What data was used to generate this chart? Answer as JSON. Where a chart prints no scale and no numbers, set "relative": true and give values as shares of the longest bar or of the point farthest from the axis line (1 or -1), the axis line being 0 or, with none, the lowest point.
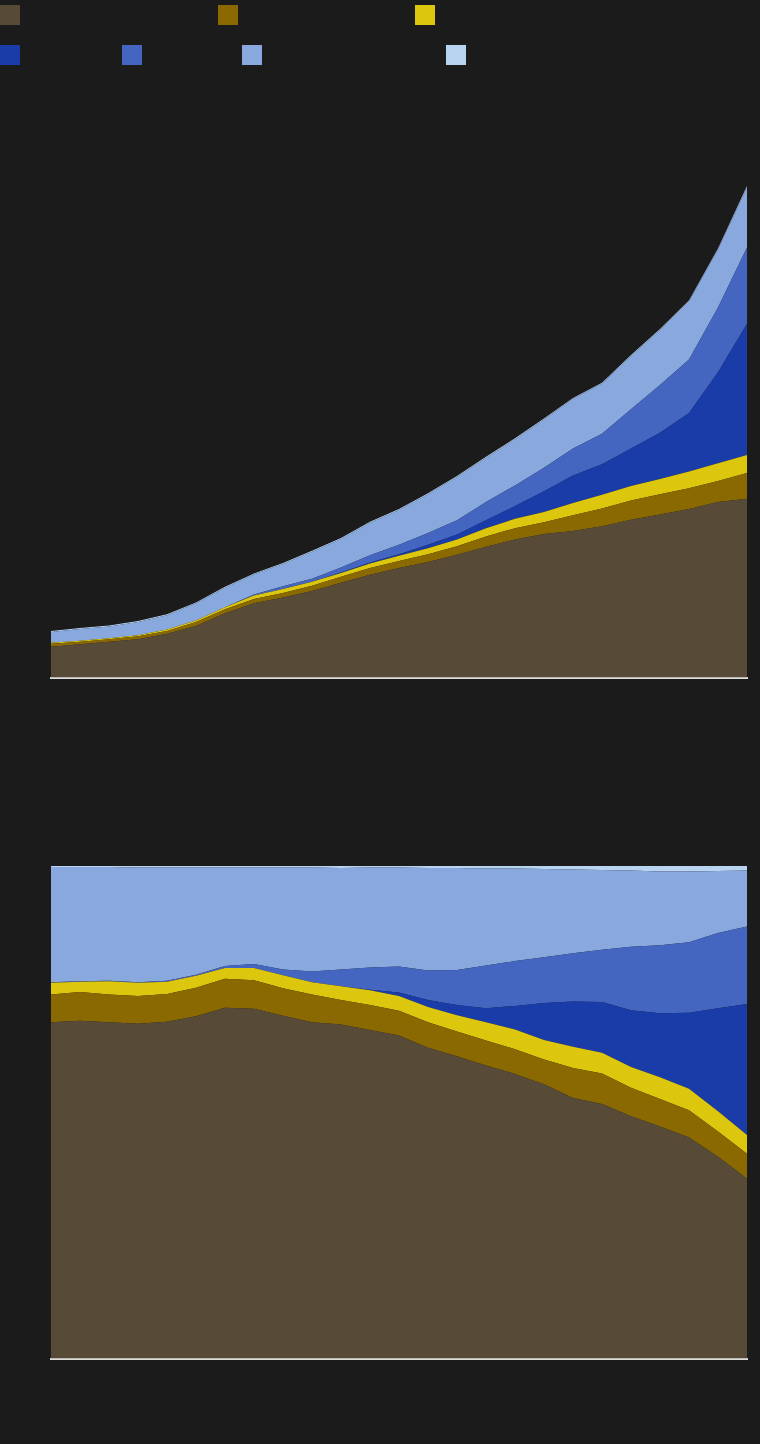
{
  "chart_data": [
    {
      "type": "area",
      "stacked": true,
      "relative": true,
      "categories": [
        null,
        null,
        null,
        null,
        null,
        null,
        null,
        null,
        null,
        null,
        null,
        null,
        null,
        null,
        null,
        null,
        null,
        null,
        null,
        null,
        null,
        null,
        null,
        null,
        null
      ],
      "series": [
        {
          "color": "#574a37",
          "values": [
            0.063,
            0.068,
            0.073,
            0.078,
            0.089,
            0.105,
            0.131,
            0.151,
            0.163,
            0.176,
            0.193,
            0.209,
            0.223,
            0.235,
            0.25,
            0.266,
            0.281,
            0.292,
            0.298,
            0.308,
            0.321,
            0.332,
            0.343,
            0.357,
            0.364
          ]
        },
        {
          "color": "#8a6900",
          "values": [
            0.006,
            0.005,
            0.005,
            0.006,
            0.006,
            0.008,
            0.008,
            0.009,
            0.009,
            0.011,
            0.012,
            0.014,
            0.014,
            0.016,
            0.017,
            0.021,
            0.023,
            0.024,
            0.032,
            0.036,
            0.039,
            0.041,
            0.042,
            0.043,
            0.052
          ]
        },
        {
          "color": "#ddc70e",
          "values": [
            0.002,
            0.002,
            0.002,
            0.002,
            0.003,
            0.003,
            0.004,
            0.007,
            0.008,
            0.008,
            0.008,
            0.009,
            0.011,
            0.012,
            0.014,
            0.017,
            0.019,
            0.021,
            0.025,
            0.028,
            0.03,
            0.031,
            0.034,
            0.036,
            0.037
          ]
        },
        {
          "color": "#1a3ca8",
          "values": [
            0,
            0,
            0,
            0,
            0,
            0,
            0,
            0,
            0,
            0,
            0.001,
            0.002,
            0.003,
            0.007,
            0.01,
            0.016,
            0.026,
            0.042,
            0.056,
            0.062,
            0.076,
            0.094,
            0.119,
            0.185,
            0.267
          ]
        },
        {
          "color": "#4466c0",
          "values": [
            0,
            0,
            0,
            0,
            0,
            0,
            0,
            0.002,
            0.006,
            0.006,
            0.01,
            0.015,
            0.019,
            0.024,
            0.029,
            0.037,
            0.042,
            0.048,
            0.055,
            0.062,
            0.08,
            0.097,
            0.109,
            0.132,
            0.155
          ]
        },
        {
          "color": "#89a8dd",
          "values": [
            0.022,
            0.024,
            0.024,
            0.027,
            0.029,
            0.035,
            0.04,
            0.041,
            0.045,
            0.055,
            0.058,
            0.066,
            0.071,
            0.079,
            0.088,
            0.09,
            0.094,
            0.098,
            0.101,
            0.102,
            0.108,
            0.112,
            0.118,
            0.118,
            0.122
          ]
        },
        {
          "color": "#b8d4f0",
          "values": [
            0.002,
            0.002,
            0.002,
            0.002,
            0.002,
            0.002,
            0.002,
            0.002,
            0.002,
            0.002,
            0.002,
            0.002,
            0.002,
            0.002,
            0.002,
            0.002,
            0.002,
            0.002,
            0.002,
            0.002,
            0.002,
            0.002,
            0.002,
            0.002,
            0.003
          ]
        }
      ]
    },
    {
      "type": "area",
      "stacked": true,
      "relative": true,
      "categories": [
        null,
        null,
        null,
        null,
        null,
        null,
        null,
        null,
        null,
        null,
        null,
        null,
        null,
        null,
        null,
        null,
        null,
        null,
        null,
        null,
        null,
        null,
        null,
        null,
        null
      ],
      "series": [
        {
          "color": "#574a37",
          "values": [
            0.683,
            0.686,
            0.683,
            0.68,
            0.684,
            0.695,
            0.712,
            0.71,
            0.696,
            0.683,
            0.678,
            0.667,
            0.656,
            0.631,
            0.614,
            0.595,
            0.578,
            0.557,
            0.529,
            0.517,
            0.492,
            0.471,
            0.449,
            0.41,
            0.365
          ]
        },
        {
          "color": "#8a6900",
          "values": [
            0.056,
            0.058,
            0.056,
            0.056,
            0.056,
            0.058,
            0.059,
            0.058,
            0.056,
            0.056,
            0.05,
            0.051,
            0.05,
            0.052,
            0.05,
            0.051,
            0.05,
            0.05,
            0.061,
            0.062,
            0.058,
            0.056,
            0.055,
            0.051,
            0.051
          ]
        },
        {
          "color": "#ddc70e",
          "values": [
            0.024,
            0.021,
            0.027,
            0.027,
            0.025,
            0.024,
            0.022,
            0.025,
            0.026,
            0.025,
            0.028,
            0.03,
            0.03,
            0.031,
            0.033,
            0.037,
            0.04,
            0.04,
            0.043,
            0.042,
            0.042,
            0.044,
            0.044,
            0.041,
            0.038
          ]
        },
        {
          "color": "#1a3ca8",
          "values": [
            0,
            0,
            0,
            0,
            0,
            0,
            0,
            0,
            0,
            0,
            0,
            0.001,
            0.007,
            0.014,
            0.021,
            0.028,
            0.048,
            0.075,
            0.092,
            0.103,
            0.115,
            0.13,
            0.154,
            0.209,
            0.266
          ]
        },
        {
          "color": "#4466c0",
          "values": [
            0.001,
            0.001,
            0.001,
            0.001,
            0.002,
            0.002,
            0.004,
            0.008,
            0.012,
            0.022,
            0.034,
            0.045,
            0.053,
            0.06,
            0.071,
            0.087,
            0.091,
            0.093,
            0.098,
            0.106,
            0.129,
            0.138,
            0.143,
            0.153,
            0.157
          ]
        },
        {
          "color": "#89a8dd",
          "values": [
            0.234,
            0.232,
            0.231,
            0.233,
            0.23,
            0.218,
            0.2,
            0.196,
            0.207,
            0.211,
            0.206,
            0.203,
            0.201,
            0.208,
            0.207,
            0.197,
            0.188,
            0.179,
            0.17,
            0.162,
            0.155,
            0.15,
            0.144,
            0.126,
            0.114
          ]
        },
        {
          "color": "#b8d4f0",
          "values": [
            0.002,
            0.002,
            0.002,
            0.003,
            0.003,
            0.003,
            0.003,
            0.003,
            0.003,
            0.003,
            0.004,
            0.003,
            0.003,
            0.004,
            0.004,
            0.005,
            0.005,
            0.006,
            0.007,
            0.008,
            0.009,
            0.011,
            0.011,
            0.01,
            0.009
          ]
        }
      ]
    }
  ]
}
